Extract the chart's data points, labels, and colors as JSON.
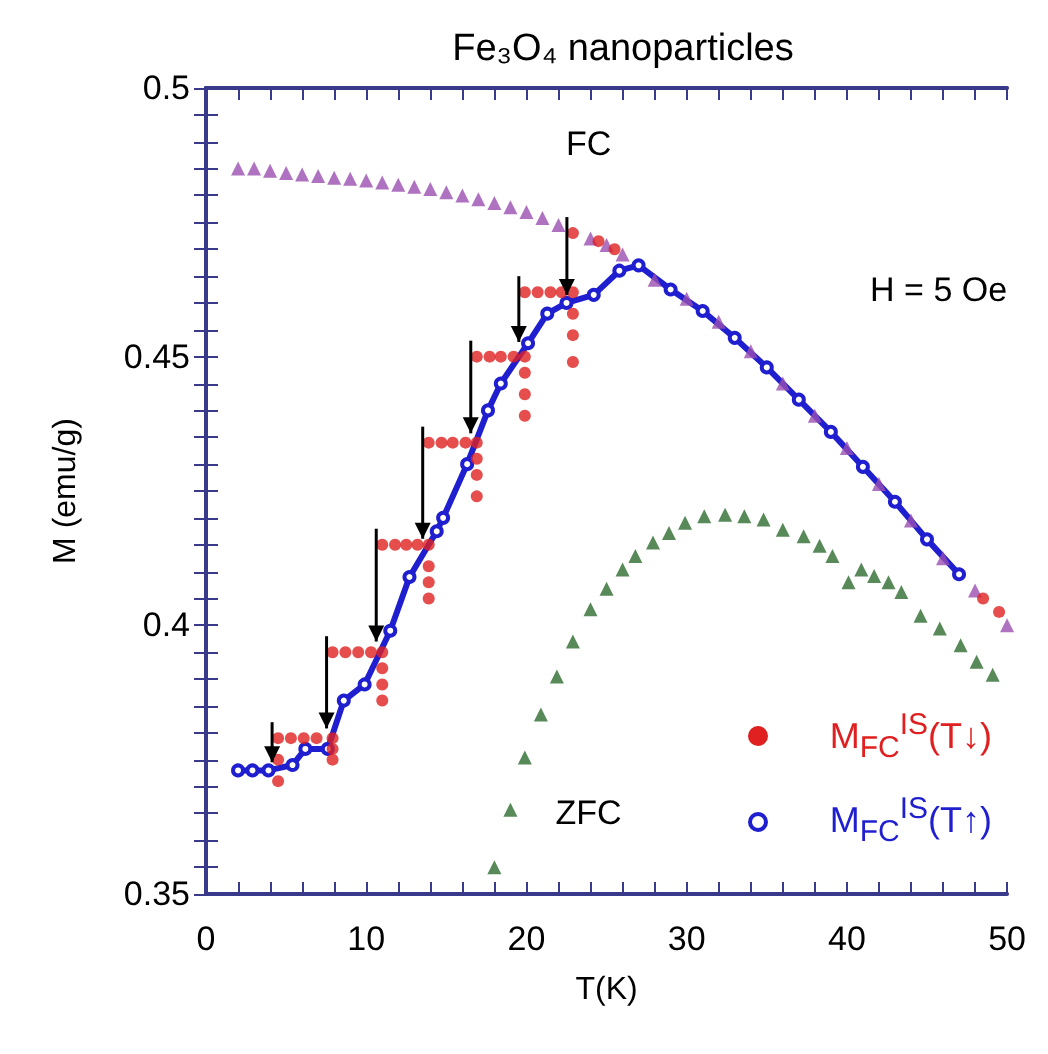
{
  "chart_data": {
    "type": "scatter",
    "title": "Fe₃O₄ nanoparticles",
    "xlabel": "T(K)",
    "ylabel": "M (emu/g)",
    "xlim": [
      0,
      50
    ],
    "xticks": [
      0,
      {
        "value": 2,
        "label": null
      },
      {
        "value": 4,
        "label": null
      },
      {
        "value": 6,
        "label": null
      },
      {
        "value": 8,
        "label": null
      },
      10,
      {
        "value": 12,
        "label": null
      },
      {
        "value": 14,
        "label": null
      },
      {
        "value": 16,
        "label": null
      },
      {
        "value": 18,
        "label": null
      },
      20,
      {
        "value": 22,
        "label": null
      },
      {
        "value": 24,
        "label": null
      },
      {
        "value": 26,
        "label": null
      },
      {
        "value": 28,
        "label": null
      },
      30,
      {
        "value": 32,
        "label": null
      },
      {
        "value": 34,
        "label": null
      },
      {
        "value": 36,
        "label": null
      },
      {
        "value": 38,
        "label": null
      },
      40,
      {
        "value": 42,
        "label": null
      },
      {
        "value": 44,
        "label": null
      },
      {
        "value": 46,
        "label": null
      },
      {
        "value": 48,
        "label": null
      },
      50
    ],
    "ylim": [
      0.35,
      0.5
    ],
    "yticks": [
      0.35,
      {
        "value": 0.355,
        "label": null
      },
      {
        "value": 0.36,
        "label": null
      },
      {
        "value": 0.365,
        "label": null
      },
      {
        "value": 0.37,
        "label": null
      },
      {
        "value": 0.375,
        "label": null
      },
      {
        "value": 0.38,
        "label": null
      },
      {
        "value": 0.385,
        "label": null
      },
      {
        "value": 0.39,
        "label": null
      },
      {
        "value": 0.395,
        "label": null
      },
      0.4,
      {
        "value": 0.405,
        "label": null
      },
      {
        "value": 0.41,
        "label": null
      },
      {
        "value": 0.415,
        "label": null
      },
      {
        "value": 0.42,
        "label": null
      },
      {
        "value": 0.425,
        "label": null
      },
      {
        "value": 0.43,
        "label": null
      },
      {
        "value": 0.435,
        "label": null
      },
      {
        "value": 0.44,
        "label": null
      },
      {
        "value": 0.445,
        "label": null
      },
      0.45,
      {
        "value": 0.455,
        "label": null
      },
      {
        "value": 0.46,
        "label": null
      },
      {
        "value": 0.465,
        "label": null
      },
      {
        "value": 0.47,
        "label": null
      },
      {
        "value": 0.475,
        "label": null
      },
      {
        "value": 0.48,
        "label": null
      },
      {
        "value": 0.485,
        "label": null
      },
      {
        "value": 0.49,
        "label": null
      },
      {
        "value": 0.495,
        "label": null
      },
      0.5
    ],
    "grid": false,
    "legend": "bottom right",
    "annotations": [
      "FC",
      "ZFC",
      "H = 5 Oe"
    ],
    "series": [
      {
        "type": "line",
        "name": "M$_{FC}$$^{IS}$(T↑)",
        "marker": "circle",
        "color": "#1f1fd0",
        "x": [
          2,
          2.9,
          3.9,
          5.4,
          6.2,
          7.6,
          8.6,
          9.9,
          11.5,
          12.7,
          14.4,
          14.8,
          16.3,
          17.6,
          18.4,
          20.1,
          21.3,
          22.5,
          24.2,
          25.8,
          27,
          29,
          31,
          33,
          35,
          37,
          39,
          41,
          43,
          45,
          47
        ],
        "values": [
          0.373,
          0.373,
          0.373,
          0.374,
          0.377,
          0.377,
          0.386,
          0.389,
          0.399,
          0.409,
          0.4175,
          0.42,
          0.43,
          0.44,
          0.445,
          0.4525,
          0.458,
          0.46,
          0.4615,
          0.466,
          0.467,
          0.4625,
          0.4585,
          0.4535,
          0.448,
          0.442,
          0.436,
          0.4295,
          0.423,
          0.416,
          0.4095
        ]
      },
      {
        "marker": "triangle",
        "color": "#9a4fb0",
        "x": [
          2,
          3,
          4,
          5,
          6,
          7,
          8,
          9,
          10,
          11,
          12,
          13,
          14,
          15,
          16,
          17,
          18,
          19,
          20,
          21,
          22,
          23,
          24,
          25,
          26,
          28,
          30,
          32,
          34,
          36,
          38,
          40,
          42,
          44,
          46,
          48,
          50
        ],
        "values": [
          0.485,
          0.485,
          0.4846,
          0.4842,
          0.4839,
          0.4836,
          0.4833,
          0.4831,
          0.4828,
          0.4824,
          0.482,
          0.4816,
          0.4812,
          0.4806,
          0.48,
          0.4793,
          0.4786,
          0.4778,
          0.4769,
          0.4758,
          0.4745,
          null,
          0.472,
          0.4708,
          0.469,
          0.4643,
          0.4608,
          0.4565,
          0.451,
          0.445,
          0.439,
          0.433,
          0.4263,
          0.4195,
          0.4125,
          0.4065,
          0.4
        ]
      },
      {
        "marker": "triangle",
        "color": "#2e6b2e",
        "x": [
          18,
          19,
          19.9,
          20.9,
          21.9,
          22.9,
          24,
          25,
          26,
          26.8,
          27.9,
          28.9,
          29.9,
          31.1,
          32.4,
          33.6,
          34.8,
          36,
          37.3,
          38.3,
          39.1,
          40.1,
          40.9,
          41.7,
          42.6,
          43.4,
          44.6,
          45.8,
          47.1,
          48.1,
          49.1
        ],
        "values": [
          0.355,
          0.3657,
          0.3754,
          0.3834,
          0.3905,
          0.397,
          0.403,
          0.4068,
          0.4104,
          0.4129,
          0.4154,
          0.4172,
          0.4191,
          0.4203,
          0.4206,
          0.4203,
          0.4197,
          0.4178,
          0.4166,
          0.4148,
          0.4129,
          0.408,
          0.4104,
          0.4092,
          0.408,
          0.4062,
          0.4018,
          0.3994,
          0.3963,
          0.3932,
          0.3908
        ]
      },
      {
        "name": "M$_{FC}$$^{IS}$(T↓)",
        "marker": "circle",
        "color": "#e02020",
        "x": [
          4.5,
          4.5,
          4.5,
          5.3,
          6.1,
          6.9,
          7.9,
          7.9,
          7.9,
          7.9,
          8.7,
          9.5,
          10.3,
          11,
          11,
          11,
          11,
          11,
          11.8,
          12.5,
          13.2,
          13.9,
          13.9,
          13.9,
          13.9,
          13.9,
          14.7,
          15.4,
          16.2,
          16.9,
          16.9,
          16.9,
          16.9,
          16.9,
          17.7,
          18.4,
          19.2,
          19.9,
          19.9,
          19.9,
          19.9,
          19.9,
          20.7,
          21.5,
          22.2,
          22.9,
          22.9,
          22.9,
          22.9,
          22.9,
          24.5,
          25.5,
          48.5,
          49.5
        ],
        "values": [
          0.379,
          0.375,
          0.371,
          0.379,
          0.379,
          0.379,
          0.395,
          0.379,
          0.377,
          0.375,
          0.395,
          0.395,
          0.395,
          0.415,
          0.395,
          0.392,
          0.389,
          0.386,
          0.415,
          0.415,
          0.415,
          0.434,
          0.415,
          0.411,
          0.408,
          0.405,
          0.434,
          0.434,
          0.434,
          0.45,
          0.434,
          0.431,
          0.428,
          0.424,
          0.45,
          0.45,
          0.45,
          0.462,
          0.45,
          0.447,
          0.443,
          0.439,
          0.462,
          0.462,
          0.462,
          0.473,
          0.462,
          0.458,
          0.454,
          0.449,
          0.4715,
          0.47,
          0.405,
          0.4025
        ]
      }
    ]
  }
}
